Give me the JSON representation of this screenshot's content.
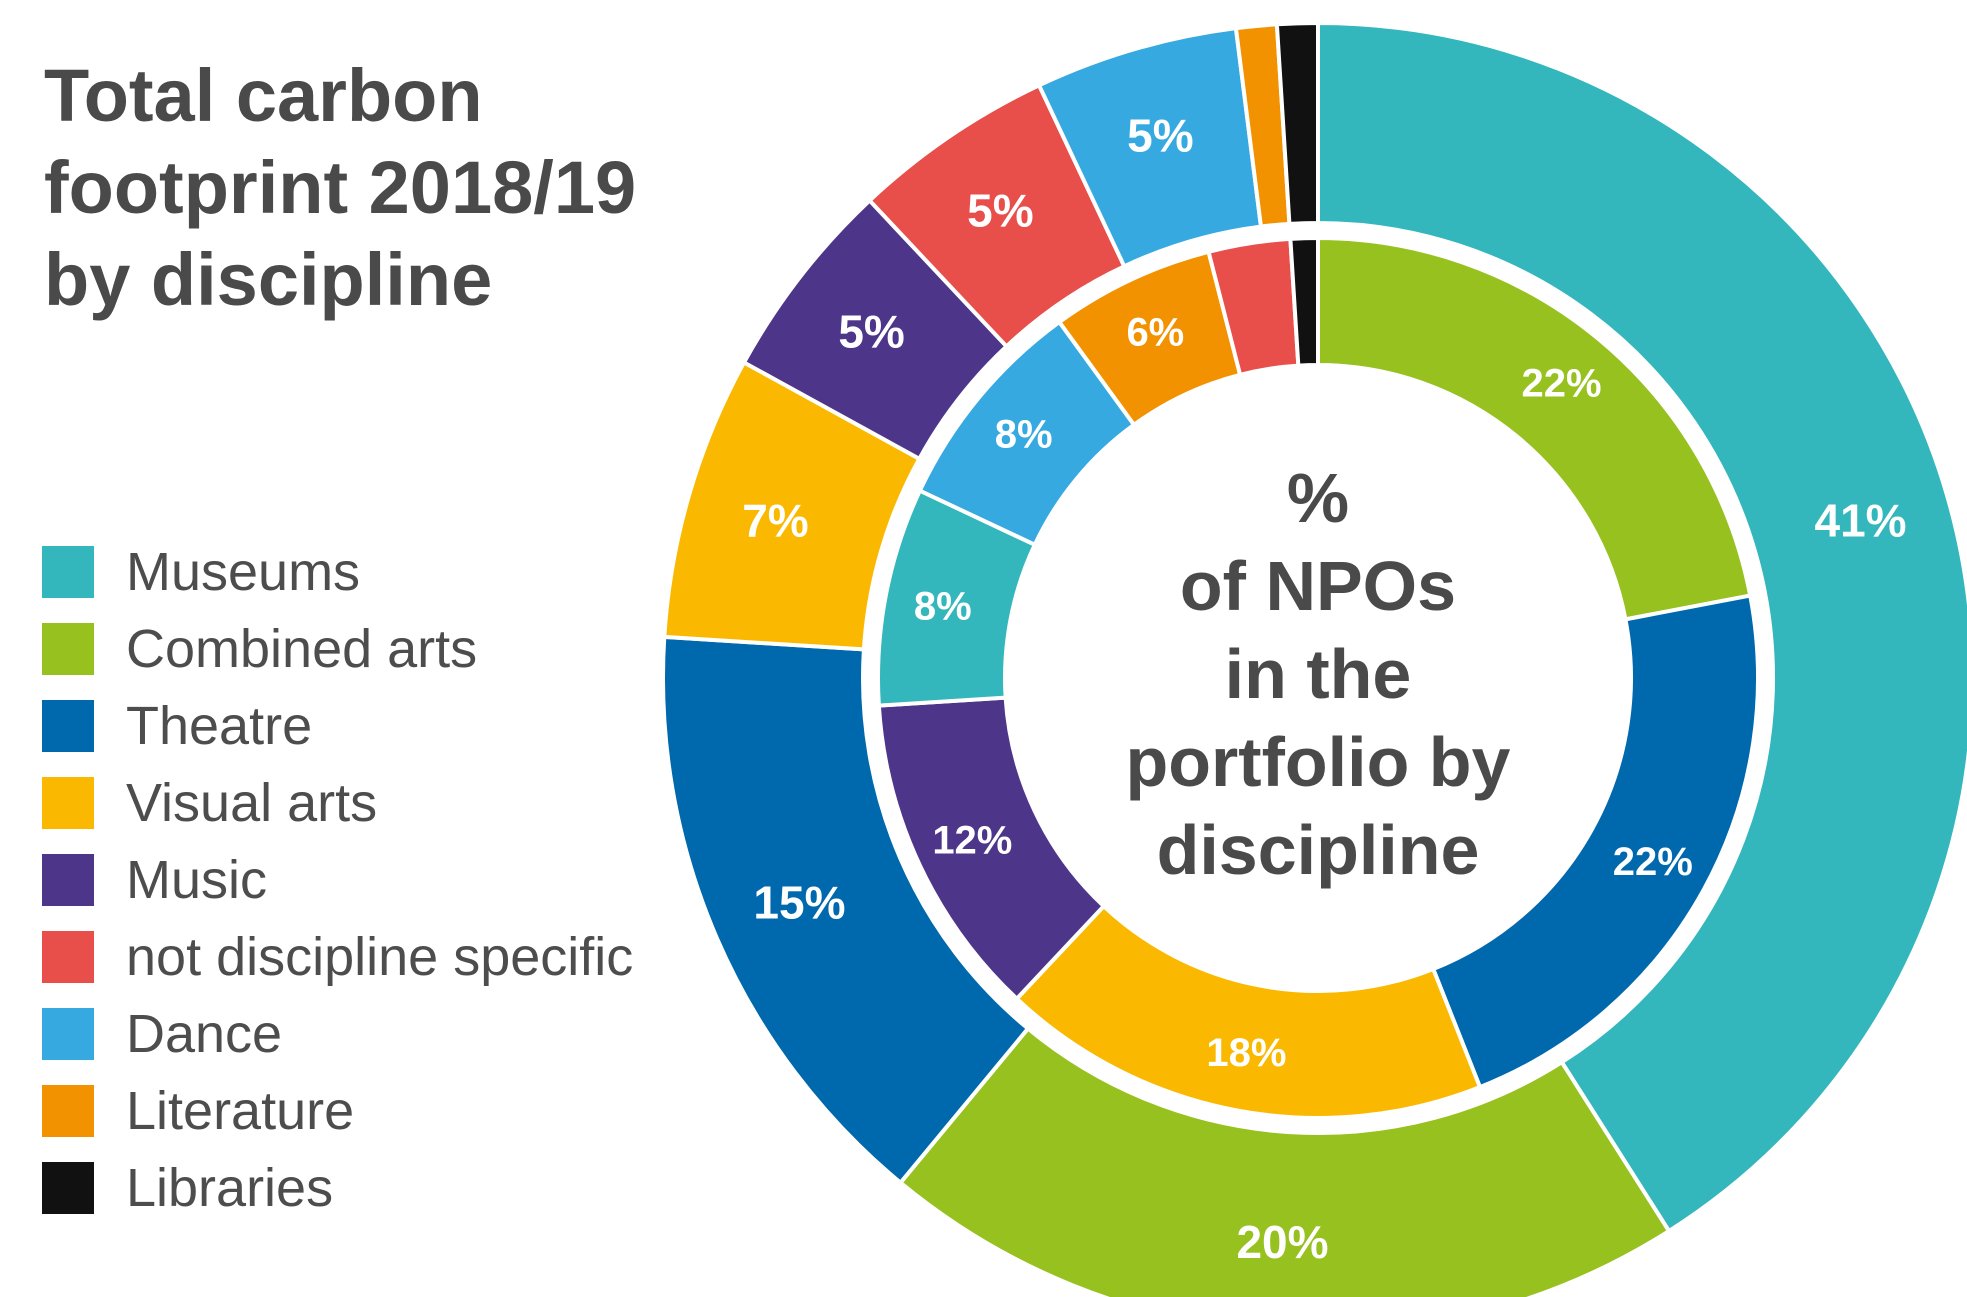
{
  "chart_data": {
    "type": "donut",
    "title_lines": [
      "Total carbon",
      "footprint 2018/19",
      "by discipline"
    ],
    "center_label_lines": [
      "%",
      "of NPOs",
      "in the",
      "portfolio by",
      "discipline"
    ],
    "categories": [
      "Museums",
      "Combined arts",
      "Theatre",
      "Visual arts",
      "Music",
      "not discipline specific",
      "Dance",
      "Literature",
      "Libraries"
    ],
    "colors": [
      "#33b7bc",
      "#96c11f",
      "#0068ac",
      "#fab900",
      "#4d358a",
      "#e84e4a",
      "#36a9e1",
      "#f39200",
      "#111111"
    ],
    "series": [
      {
        "ring": "outer",
        "values": [
          41,
          20,
          15,
          7,
          5,
          5,
          5,
          1,
          1
        ],
        "labels": [
          "41%",
          "20%",
          "15%",
          "7%",
          "5%",
          "5%",
          "5%",
          "",
          ""
        ]
      },
      {
        "ring": "inner",
        "values": [
          8,
          22,
          22,
          18,
          12,
          3,
          8,
          6,
          1
        ],
        "labels": [
          "8%",
          "22%",
          "22%",
          "18%",
          "12%",
          "",
          "8%",
          "6%",
          ""
        ]
      }
    ],
    "legend_position": "left"
  }
}
